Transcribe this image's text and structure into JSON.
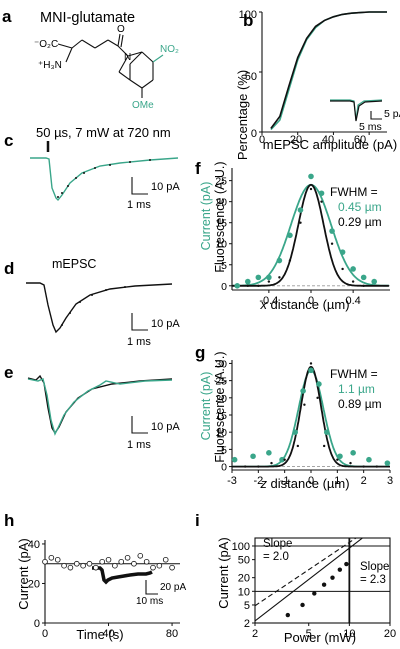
{
  "colors": {
    "green": "#3aa68a",
    "black": "#111111",
    "nitro": "#3aa68a"
  },
  "panels": {
    "a": {
      "letter": "a",
      "title": "MNI-glutamate",
      "atoms": {
        "o2c": "⁻O₂C",
        "h3n": "⁺H₃N",
        "n": "N",
        "no2": "NO₂",
        "ome": "OMe",
        "o": "O"
      }
    },
    "b": {
      "letter": "b",
      "ylabel": "Percentage (%)",
      "xlabel": "mEPSC amplitude (pA)",
      "yticks": [
        "0",
        "50",
        "100"
      ],
      "xticks": [
        "0",
        "20",
        "40",
        "60"
      ],
      "scale_pa": "5 pA",
      "scale_ms": "5 ms"
    },
    "c": {
      "letter": "c",
      "stim_label": "50 µs, 7 mW at 720 nm",
      "scale_pa": "10 pA",
      "scale_ms": "1 ms"
    },
    "d": {
      "letter": "d",
      "label": "mEPSC",
      "scale_pa": "10 pA",
      "scale_ms": "1 ms"
    },
    "e": {
      "letter": "e",
      "scale_pa": "10 pA",
      "scale_ms": "1 ms"
    },
    "f": {
      "letter": "f",
      "ylabel_green": "Current (pA)",
      "ylabel_black": "Fluorescence (A.U.)",
      "yticks": [
        "0",
        "5",
        "10",
        "15",
        "20",
        "25"
      ],
      "xticks": [
        "-0.4",
        "0",
        "0.4"
      ],
      "xlabel_italic": "x",
      "xlabel_rest": " distance (µm)",
      "fwhm_label": "FWHM =",
      "fwhm_green": "0.45 µm",
      "fwhm_black": "0.29 µm"
    },
    "g": {
      "letter": "g",
      "ylabel_green": "Current (pA)",
      "ylabel_black": "Fluorescence (A.U.)",
      "yticks": [
        "0",
        "5",
        "10",
        "15",
        "20",
        "25",
        "30"
      ],
      "xticks": [
        "-3",
        "-2",
        "-1",
        "0",
        "1",
        "2",
        "3"
      ],
      "xlabel_italic": "z",
      "xlabel_rest": " distance (µm)",
      "fwhm_label": "FWHM =",
      "fwhm_green": "1.1 µm",
      "fwhm_black": "0.89 µm"
    },
    "h": {
      "letter": "h",
      "ylabel": "Current (pA)",
      "xlabel": "Time (s)",
      "yticks": [
        "0",
        "20",
        "40"
      ],
      "xticks": [
        "0",
        "40",
        "80"
      ],
      "scale_pa": "20 pA",
      "scale_ms": "10 ms"
    },
    "i": {
      "letter": "i",
      "ylabel": "Current (pA)",
      "xlabel": "Power (mW)",
      "yticks": [
        "2",
        "5",
        "10",
        "20",
        "50",
        "100"
      ],
      "xticks": [
        "2",
        "5",
        "10",
        "20"
      ],
      "slope_left": "Slope\n= 2.0",
      "slope_right": "Slope\n= 2.3"
    }
  },
  "chart_data": [
    {
      "panel": "b",
      "type": "line",
      "title": "",
      "xlabel": "mEPSC amplitude (pA)",
      "ylabel": "Percentage (%)",
      "xlim": [
        0,
        70
      ],
      "ylim": [
        0,
        100
      ],
      "series": [
        {
          "x": [
            5,
            10,
            15,
            20,
            25,
            30,
            35,
            40,
            45,
            50,
            55,
            60,
            65,
            70
          ],
          "values": [
            2,
            10,
            35,
            60,
            77,
            87,
            93,
            96,
            98,
            99,
            99.5,
            100,
            100,
            100
          ],
          "color": "#3aa68a"
        },
        {
          "x": [
            5,
            10,
            15,
            20,
            25,
            30,
            35,
            40,
            45,
            50,
            55,
            60,
            65,
            70
          ],
          "values": [
            3,
            13,
            38,
            62,
            78,
            88,
            93,
            96,
            98,
            99,
            99.5,
            100,
            100,
            100
          ],
          "color": "#111111"
        }
      ]
    },
    {
      "panel": "f",
      "type": "scatter",
      "title": "",
      "xlabel": "x distance (µm)",
      "ylabel": "Current (pA) / Fluorescence (A.U.)",
      "xlim": [
        -0.75,
        0.75
      ],
      "ylim": [
        -1,
        28
      ],
      "series": [
        {
          "x": [
            -0.7,
            -0.6,
            -0.5,
            -0.4,
            -0.3,
            -0.2,
            -0.1,
            0,
            0.1,
            0.2,
            0.3,
            0.4,
            0.5,
            0.6
          ],
          "values": [
            0,
            1,
            2,
            2,
            6,
            12,
            18,
            26,
            22,
            13,
            8,
            4,
            2,
            1
          ],
          "color": "#3aa68a"
        },
        {
          "x": [
            -0.6,
            -0.5,
            -0.4,
            -0.3,
            -0.2,
            -0.1,
            0,
            0.1,
            0.2,
            0.3,
            0.4,
            0.5
          ],
          "values": [
            0,
            0,
            1,
            2,
            6,
            15,
            23,
            20,
            10,
            4,
            1,
            0
          ],
          "color": "#111111"
        }
      ]
    },
    {
      "panel": "g",
      "type": "scatter",
      "title": "",
      "xlabel": "z distance (µm)",
      "ylabel": "Current (pA) / Fluorescence (A.U.)",
      "xlim": [
        -3,
        3
      ],
      "ylim": [
        -1,
        31
      ],
      "series": [
        {
          "x": [
            -2.9,
            -2.2,
            -1.6,
            -1.1,
            -0.6,
            -0.3,
            0,
            0.3,
            0.6,
            1.1,
            1.6,
            2.2,
            2.9
          ],
          "values": [
            2,
            3,
            4,
            2,
            10,
            22,
            28,
            24,
            10,
            3,
            4,
            2,
            1
          ],
          "color": "#3aa68a"
        },
        {
          "x": [
            -2.5,
            -2,
            -1.5,
            -1,
            -0.5,
            -0.25,
            0,
            0.25,
            0.5,
            1,
            1.5,
            2,
            2.5
          ],
          "values": [
            0,
            0,
            1,
            2,
            6,
            18,
            30,
            20,
            6,
            2,
            1,
            0,
            0
          ],
          "color": "#111111"
        }
      ]
    },
    {
      "panel": "h",
      "type": "scatter",
      "title": "",
      "xlabel": "Time (s)",
      "ylabel": "Current (pA)",
      "xlim": [
        0,
        85
      ],
      "ylim": [
        0,
        42
      ],
      "series": [
        {
          "x": [
            0,
            4,
            8,
            12,
            16,
            20,
            24,
            28,
            32,
            36,
            40,
            44,
            48,
            52,
            56,
            60,
            64,
            68,
            72,
            76,
            80
          ],
          "values": [
            31,
            33,
            32,
            29,
            28,
            30,
            29,
            30,
            28,
            31,
            32,
            29,
            31,
            33,
            30,
            34,
            31,
            28,
            29,
            32,
            28
          ],
          "color": "#111111"
        }
      ]
    },
    {
      "panel": "i",
      "type": "scatter",
      "title": "",
      "xlabel": "Power (mW)",
      "ylabel": "Current (pA)",
      "xlim": [
        2,
        20
      ],
      "ylim": [
        2,
        150
      ],
      "series": [
        {
          "x": [
            3.5,
            4.5,
            5.5,
            6.5,
            7.5,
            8.5,
            9.5
          ],
          "values": [
            3,
            5,
            9,
            14,
            20,
            30,
            40
          ],
          "color": "#111111"
        }
      ]
    }
  ]
}
